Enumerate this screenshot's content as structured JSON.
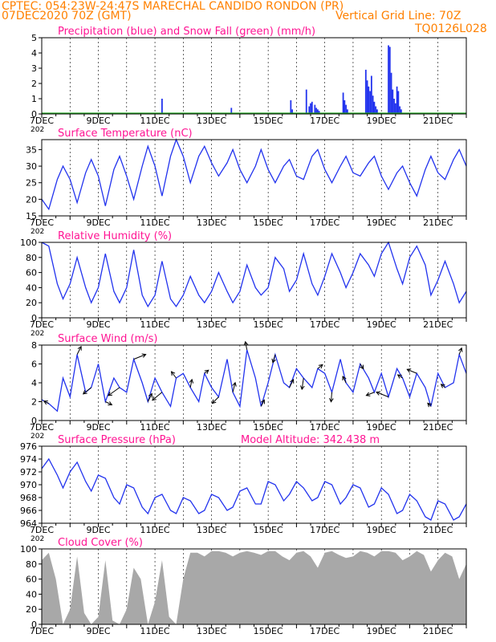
{
  "header": {
    "station_line": "CPTEC:   054:23W-24:47S  MARECHAL CANDIDO RONDON (PR)",
    "run_line": "07DEC2020 70Z (GMT)",
    "grid_line": "Vertical Grid Line: 70Z",
    "code": "TQ0126L028",
    "model_altitude": "Model Altitude: 342.438  m"
  },
  "colors": {
    "header": "#ff8000",
    "title": "#ff1493",
    "line": "#2233ee",
    "snow": "#22aa22",
    "cloud": "#a8a8a8"
  },
  "x_axis_labels": [
    "7DEC",
    "9DEC",
    "11DEC",
    "13DEC",
    "15DEC",
    "17DEC",
    "19DEC",
    "21DEC"
  ],
  "year_fragment": "202",
  "chart_data": [
    {
      "type": "bar",
      "title": "Precipitation (blue) and Snow Fall (green) (mm/h)",
      "ylim": [
        0,
        5
      ],
      "yticks": [
        0,
        1,
        2,
        3,
        4,
        5
      ],
      "x_unit": "day offset from 7DEC 00Z",
      "series": [
        {
          "name": "Precipitation",
          "x": [
            4.25,
            6.7,
            8.8,
            8.85,
            9.35,
            9.45,
            9.5,
            9.55,
            9.65,
            9.7,
            9.75,
            9.8,
            10.65,
            10.7,
            10.75,
            10.8,
            11.45,
            11.5,
            11.55,
            11.6,
            11.65,
            11.7,
            11.75,
            11.8,
            11.85,
            12.25,
            12.3,
            12.35,
            12.4,
            12.45,
            12.5,
            12.55,
            12.6,
            12.65,
            12.7
          ],
          "values": [
            1.0,
            0.4,
            0.9,
            0.3,
            1.6,
            0.5,
            0.7,
            0.8,
            0.6,
            0.4,
            0.3,
            0.2,
            1.4,
            0.9,
            0.6,
            0.3,
            2.9,
            2.2,
            1.8,
            1.5,
            2.5,
            1.2,
            0.8,
            0.5,
            0.3,
            4.5,
            4.4,
            2.7,
            1.6,
            1.0,
            0.7,
            1.8,
            1.5,
            0.5,
            0.3
          ]
        },
        {
          "name": "Snow Fall",
          "x": [],
          "values": []
        }
      ]
    },
    {
      "type": "line",
      "title": "Surface Temperature (nC)",
      "ylim": [
        15,
        38
      ],
      "yticks": [
        15,
        20,
        25,
        30,
        35
      ],
      "x": [
        0,
        0.25,
        0.55,
        0.75,
        1.0,
        1.25,
        1.55,
        1.75,
        2.0,
        2.25,
        2.55,
        2.75,
        3.0,
        3.25,
        3.55,
        3.75,
        4.0,
        4.25,
        4.55,
        4.75,
        5.0,
        5.25,
        5.55,
        5.75,
        6.0,
        6.25,
        6.55,
        6.75,
        7.0,
        7.25,
        7.55,
        7.75,
        8.0,
        8.25,
        8.55,
        8.75,
        9.0,
        9.25,
        9.55,
        9.75,
        10.0,
        10.25,
        10.55,
        10.75,
        11.0,
        11.25,
        11.55,
        11.75,
        12.0,
        12.25,
        12.55,
        12.75,
        13.0,
        13.25,
        13.55,
        13.75,
        14.0,
        14.25,
        14.55,
        14.75,
        15.0
      ],
      "values": [
        20,
        17,
        26,
        30,
        26,
        19,
        28,
        32,
        27,
        18,
        29,
        33,
        27,
        20,
        30,
        36,
        30,
        21,
        33,
        38,
        33,
        25,
        33,
        36,
        31,
        27,
        31,
        35,
        29,
        25,
        30,
        35,
        29,
        25,
        30,
        32,
        27,
        26,
        33,
        35,
        29,
        25,
        30,
        33,
        28,
        27,
        31,
        33,
        27,
        23,
        28,
        30,
        25,
        21,
        29,
        33,
        28,
        26,
        32,
        35,
        30
      ]
    },
    {
      "type": "line",
      "title": "Relative Humidity (%)",
      "ylim": [
        0,
        100
      ],
      "yticks": [
        0,
        20,
        40,
        60,
        80,
        100
      ],
      "x": [
        0,
        0.25,
        0.55,
        0.75,
        1.0,
        1.25,
        1.55,
        1.75,
        2.0,
        2.25,
        2.55,
        2.75,
        3.0,
        3.25,
        3.55,
        3.75,
        4.0,
        4.25,
        4.55,
        4.75,
        5.0,
        5.25,
        5.55,
        5.75,
        6.0,
        6.25,
        6.55,
        6.75,
        7.0,
        7.25,
        7.55,
        7.75,
        8.0,
        8.25,
        8.55,
        8.75,
        9.0,
        9.25,
        9.55,
        9.75,
        10.0,
        10.25,
        10.55,
        10.75,
        11.0,
        11.25,
        11.55,
        11.75,
        12.0,
        12.25,
        12.55,
        12.75,
        13.0,
        13.25,
        13.55,
        13.75,
        14.0,
        14.25,
        14.55,
        14.75,
        15.0
      ],
      "values": [
        100,
        95,
        45,
        25,
        45,
        80,
        40,
        20,
        40,
        85,
        35,
        20,
        40,
        90,
        30,
        15,
        30,
        75,
        25,
        15,
        30,
        55,
        30,
        20,
        35,
        60,
        35,
        20,
        35,
        70,
        40,
        30,
        40,
        80,
        65,
        35,
        50,
        85,
        45,
        30,
        55,
        85,
        60,
        40,
        60,
        85,
        70,
        55,
        85,
        100,
        65,
        45,
        80,
        95,
        70,
        30,
        50,
        75,
        45,
        20,
        35
      ]
    },
    {
      "type": "line",
      "title": "Surface Wind (m/s)",
      "ylim": [
        0,
        8
      ],
      "yticks": [
        0,
        2,
        4,
        6,
        8
      ],
      "x": [
        0,
        0.25,
        0.55,
        0.75,
        1.0,
        1.25,
        1.55,
        1.75,
        2.0,
        2.25,
        2.55,
        2.75,
        3.0,
        3.25,
        3.55,
        3.75,
        4.0,
        4.25,
        4.55,
        4.75,
        5.0,
        5.25,
        5.55,
        5.75,
        6.0,
        6.25,
        6.55,
        6.75,
        7.0,
        7.25,
        7.55,
        7.75,
        8.0,
        8.25,
        8.55,
        8.75,
        9.0,
        9.25,
        9.55,
        9.75,
        10.0,
        10.25,
        10.55,
        10.75,
        11.0,
        11.25,
        11.55,
        11.75,
        12.0,
        12.25,
        12.55,
        12.75,
        13.0,
        13.25,
        13.55,
        13.75,
        14.0,
        14.25,
        14.55,
        14.75,
        15.0
      ],
      "values": [
        2.2,
        1.8,
        1.0,
        4.5,
        2.5,
        7.0,
        3.0,
        3.5,
        6.0,
        2.0,
        4.5,
        3.5,
        3.0,
        6.5,
        4.0,
        2.0,
        4.5,
        3.0,
        1.5,
        4.5,
        5.0,
        3.5,
        2.0,
        5.0,
        3.5,
        2.5,
        6.5,
        3.0,
        1.5,
        7.5,
        4.5,
        1.5,
        4.0,
        7.0,
        4.0,
        3.5,
        5.5,
        4.5,
        3.5,
        5.5,
        5.0,
        3.0,
        6.5,
        4.0,
        3.0,
        6.0,
        4.5,
        3.0,
        5.0,
        2.5,
        5.5,
        4.5,
        2.5,
        5.0,
        3.5,
        1.5,
        5.0,
        3.5,
        4.0,
        7.0,
        5.0
      ],
      "arrows": {
        "x": [
          0.25,
          1.25,
          1.75,
          2.25,
          2.75,
          3.25,
          3.75,
          4.25,
          4.75,
          5.25,
          5.75,
          6.25,
          6.75,
          7.25,
          7.75,
          8.25,
          8.75,
          9.25,
          9.75,
          10.25,
          10.75,
          11.25,
          11.75,
          12.25,
          12.75,
          13.25,
          13.75,
          14.25,
          14.75
        ],
        "u": [
          -0.6,
          0.5,
          -1.0,
          0.8,
          -1.4,
          1.5,
          0.5,
          -1.2,
          -0.6,
          0.2,
          0.5,
          -0.8,
          0.3,
          -0.2,
          0.4,
          -0.3,
          0.5,
          -0.2,
          0.6,
          -0.1,
          -0.4,
          0.4,
          -1.0,
          -1.5,
          -0.6,
          -1.2,
          -0.4,
          -0.5,
          0.3
        ],
        "v": [
          0.3,
          1.0,
          -0.8,
          -0.4,
          -1.0,
          0.6,
          1.0,
          -1.0,
          0.8,
          1.0,
          0.4,
          -0.8,
          1.2,
          1.0,
          0.8,
          -1.0,
          1.0,
          -1.4,
          0.5,
          -1.2,
          0.8,
          -0.6,
          -0.4,
          0.6,
          0.4,
          0.5,
          0.4,
          0.4,
          0.8
        ]
      }
    },
    {
      "type": "line",
      "title": "Surface Pressure (hPa)",
      "ylim": [
        964,
        976
      ],
      "yticks": [
        964,
        966,
        968,
        970,
        972,
        974,
        976
      ],
      "x": [
        0,
        0.25,
        0.55,
        0.75,
        1.0,
        1.25,
        1.55,
        1.75,
        2.0,
        2.25,
        2.55,
        2.75,
        3.0,
        3.25,
        3.55,
        3.75,
        4.0,
        4.25,
        4.55,
        4.75,
        5.0,
        5.25,
        5.55,
        5.75,
        6.0,
        6.25,
        6.55,
        6.75,
        7.0,
        7.25,
        7.55,
        7.75,
        8.0,
        8.25,
        8.55,
        8.75,
        9.0,
        9.25,
        9.55,
        9.75,
        10.0,
        10.25,
        10.55,
        10.75,
        11.0,
        11.25,
        11.55,
        11.75,
        12.0,
        12.25,
        12.55,
        12.75,
        13.0,
        13.25,
        13.55,
        13.75,
        14.0,
        14.25,
        14.55,
        14.75,
        15.0
      ],
      "values": [
        972.5,
        974.0,
        971.5,
        969.5,
        972.0,
        973.5,
        970.5,
        969.0,
        971.5,
        971.0,
        968.0,
        967.0,
        970.0,
        969.5,
        966.5,
        965.5,
        968.0,
        968.5,
        966.0,
        965.5,
        968.0,
        967.5,
        965.5,
        966.0,
        968.5,
        968.0,
        966.0,
        966.5,
        969.0,
        969.5,
        967.0,
        967.0,
        970.5,
        970.0,
        967.5,
        968.5,
        970.5,
        969.5,
        967.5,
        968.0,
        970.5,
        970.0,
        967.0,
        968.0,
        970.0,
        969.5,
        966.5,
        967.0,
        969.5,
        968.5,
        965.5,
        966.0,
        968.5,
        967.5,
        965.0,
        964.5,
        967.5,
        967.0,
        964.5,
        965.0,
        967.0
      ]
    },
    {
      "type": "area",
      "title": "Cloud Cover (%)",
      "ylim": [
        0,
        100
      ],
      "yticks": [
        0,
        20,
        40,
        60,
        80,
        100
      ],
      "x": [
        0,
        0.25,
        0.5,
        0.75,
        1.0,
        1.25,
        1.5,
        1.75,
        2.0,
        2.25,
        2.5,
        2.75,
        3.0,
        3.25,
        3.5,
        3.75,
        4.0,
        4.25,
        4.5,
        4.75,
        5.0,
        5.25,
        5.5,
        5.75,
        6.0,
        6.25,
        6.5,
        6.75,
        7.0,
        7.25,
        7.5,
        7.75,
        8.0,
        8.25,
        8.5,
        8.75,
        9.0,
        9.25,
        9.5,
        9.75,
        10.0,
        10.25,
        10.5,
        10.75,
        11.0,
        11.25,
        11.5,
        11.75,
        12.0,
        12.25,
        12.5,
        12.75,
        13.0,
        13.25,
        13.5,
        13.75,
        14.0,
        14.25,
        14.5,
        14.75,
        15.0
      ],
      "values": [
        85,
        95,
        60,
        0,
        20,
        90,
        15,
        0,
        10,
        85,
        5,
        0,
        20,
        75,
        60,
        0,
        30,
        85,
        10,
        0,
        60,
        95,
        95,
        90,
        97,
        97,
        95,
        90,
        95,
        97,
        95,
        92,
        97,
        97,
        90,
        85,
        95,
        97,
        90,
        75,
        95,
        97,
        92,
        88,
        90,
        97,
        95,
        90,
        97,
        97,
        95,
        85,
        90,
        97,
        92,
        70,
        85,
        95,
        90,
        60,
        80
      ]
    }
  ]
}
